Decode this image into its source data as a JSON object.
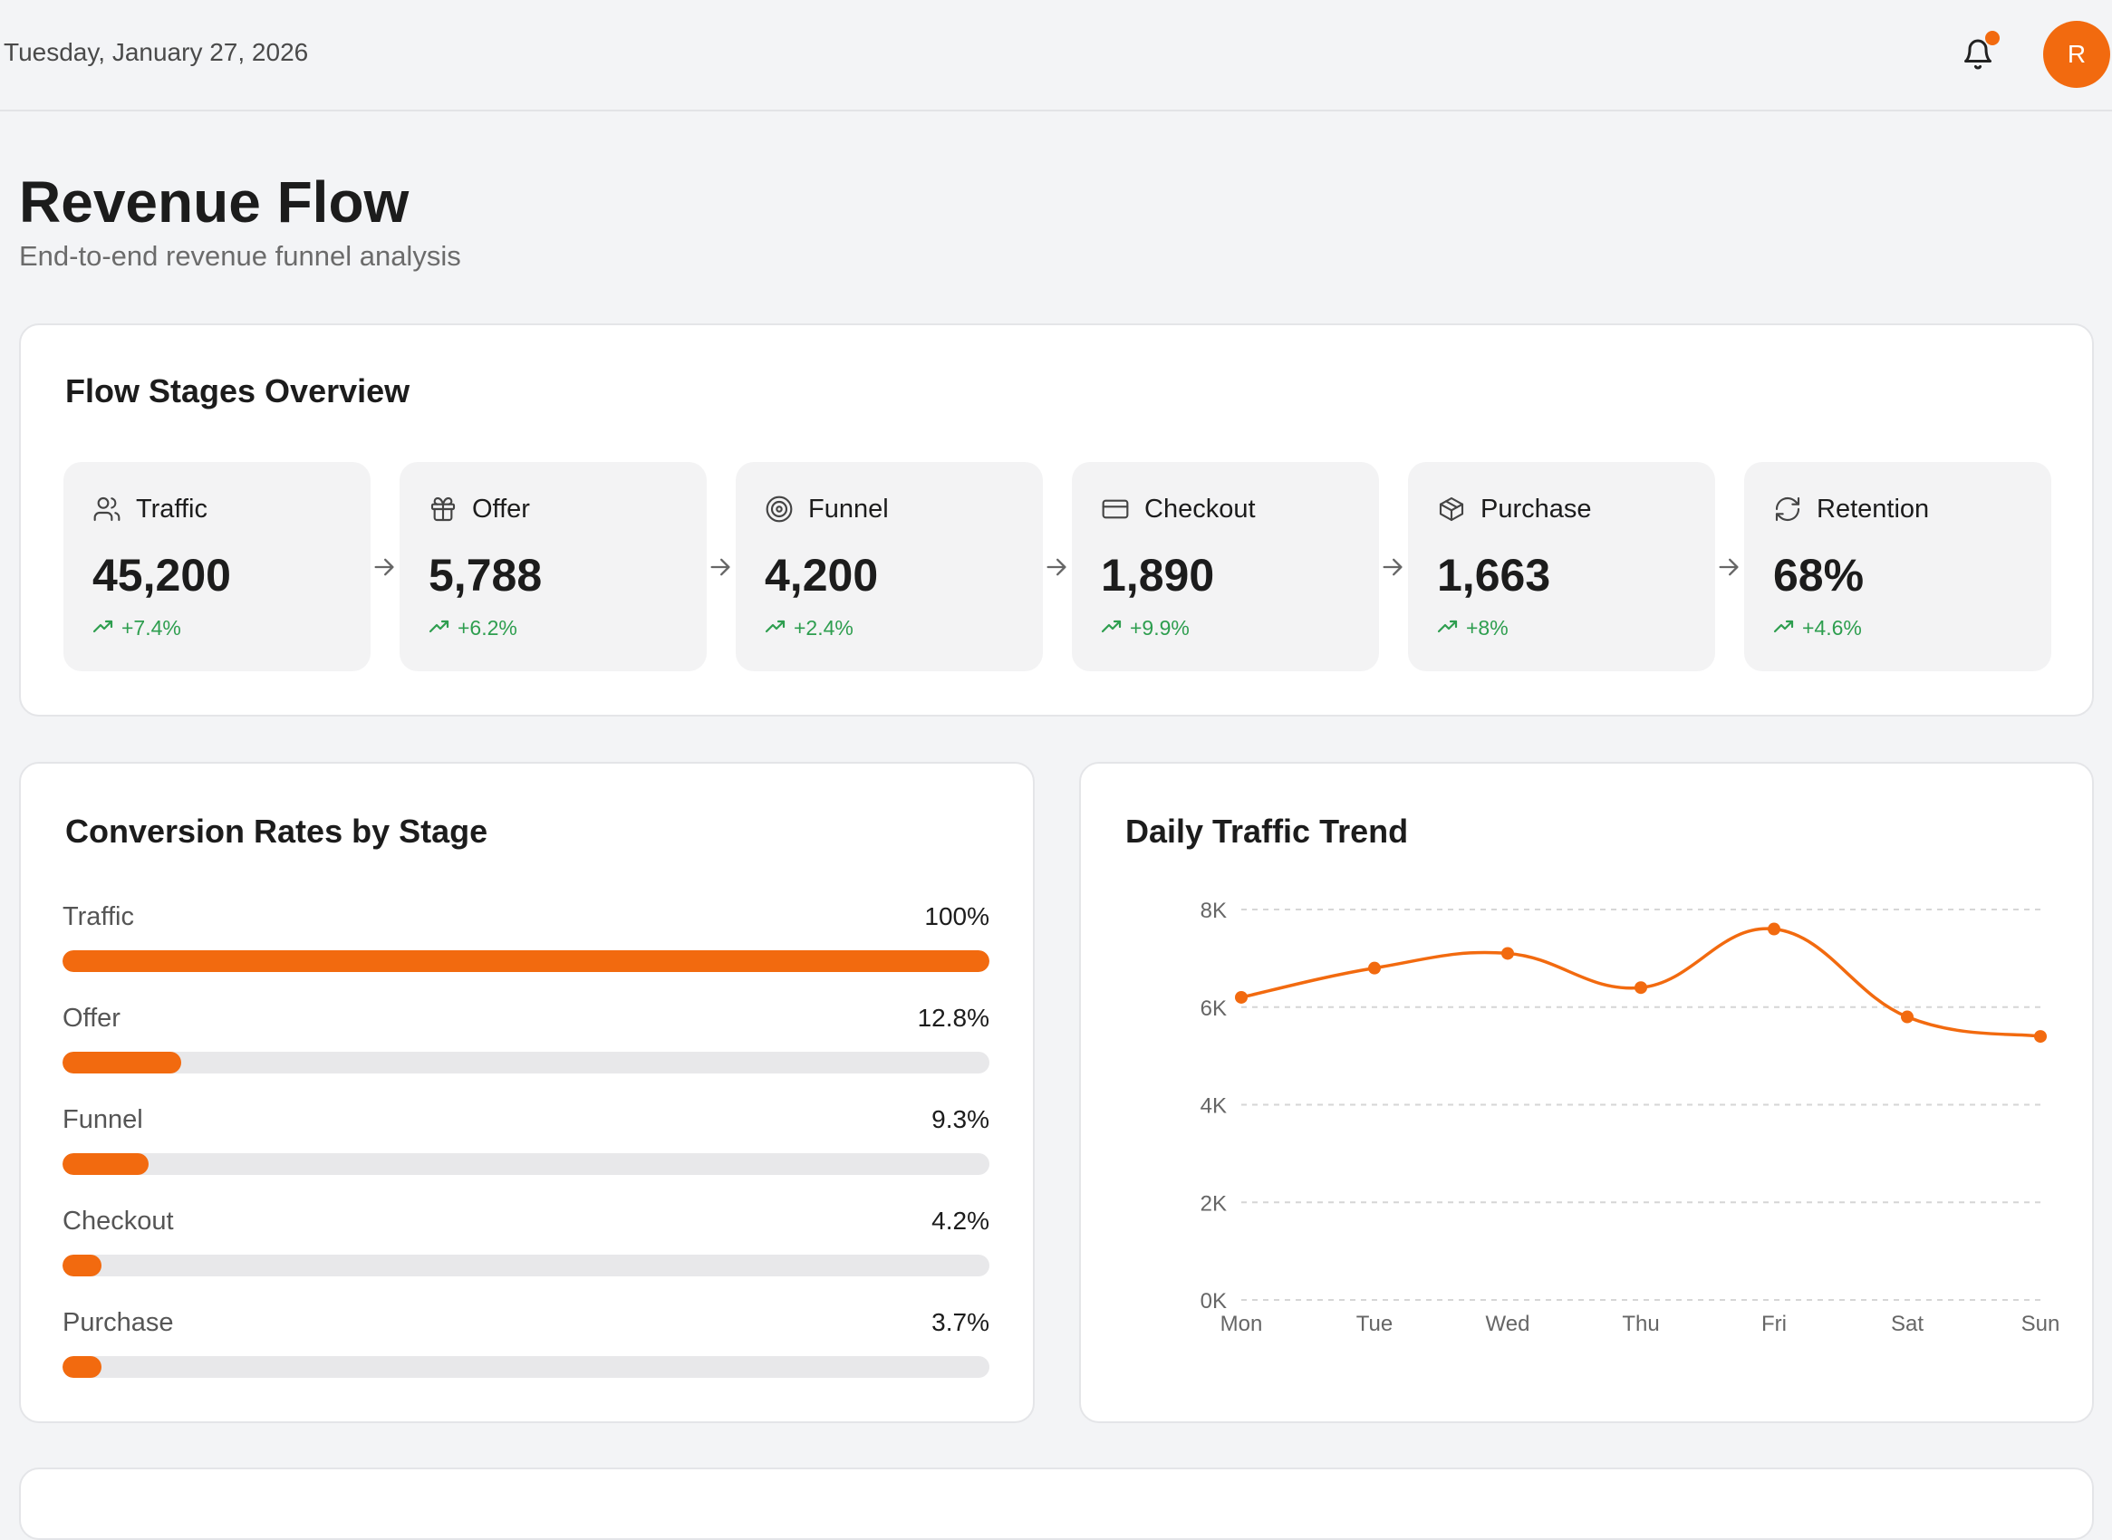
{
  "header": {
    "date": "Tuesday, January 27, 2026",
    "avatar_initial": "R",
    "accent_color": "#f26a0f"
  },
  "page": {
    "title": "Revenue Flow",
    "subtitle": "End-to-end revenue funnel analysis"
  },
  "flow_overview": {
    "title": "Flow Stages Overview",
    "stages": [
      {
        "label": "Traffic",
        "value": "45,200",
        "trend": "+7.4%",
        "icon": "users-icon"
      },
      {
        "label": "Offer",
        "value": "5,788",
        "trend": "+6.2%",
        "icon": "gift-icon"
      },
      {
        "label": "Funnel",
        "value": "4,200",
        "trend": "+2.4%",
        "icon": "target-icon"
      },
      {
        "label": "Checkout",
        "value": "1,890",
        "trend": "+9.9%",
        "icon": "credit-card-icon"
      },
      {
        "label": "Purchase",
        "value": "1,663",
        "trend": "+8%",
        "icon": "package-icon"
      },
      {
        "label": "Retention",
        "value": "68%",
        "trend": "+4.6%",
        "icon": "refresh-icon"
      }
    ]
  },
  "conversion": {
    "title": "Conversion Rates by Stage",
    "rows": [
      {
        "label": "Traffic",
        "pct_text": "100%",
        "pct": 100
      },
      {
        "label": "Offer",
        "pct_text": "12.8%",
        "pct": 12.8
      },
      {
        "label": "Funnel",
        "pct_text": "9.3%",
        "pct": 9.3
      },
      {
        "label": "Checkout",
        "pct_text": "4.2%",
        "pct": 4.2
      },
      {
        "label": "Purchase",
        "pct_text": "3.7%",
        "pct": 3.7
      }
    ]
  },
  "traffic_trend": {
    "title": "Daily Traffic Trend"
  },
  "chart_data": {
    "type": "line",
    "title": "Daily Traffic Trend",
    "x": [
      "Mon",
      "Tue",
      "Wed",
      "Thu",
      "Fri",
      "Sat",
      "Sun"
    ],
    "series": [
      {
        "values": [
          6200,
          6800,
          7100,
          6400,
          7600,
          5800,
          5400
        ],
        "color": "#f26a0f"
      }
    ],
    "y_ticks": [
      "0K",
      "2K",
      "4K",
      "6K",
      "8K"
    ],
    "ylim": [
      0,
      8000
    ],
    "grid": "horizontal dashed",
    "smooth": true
  }
}
